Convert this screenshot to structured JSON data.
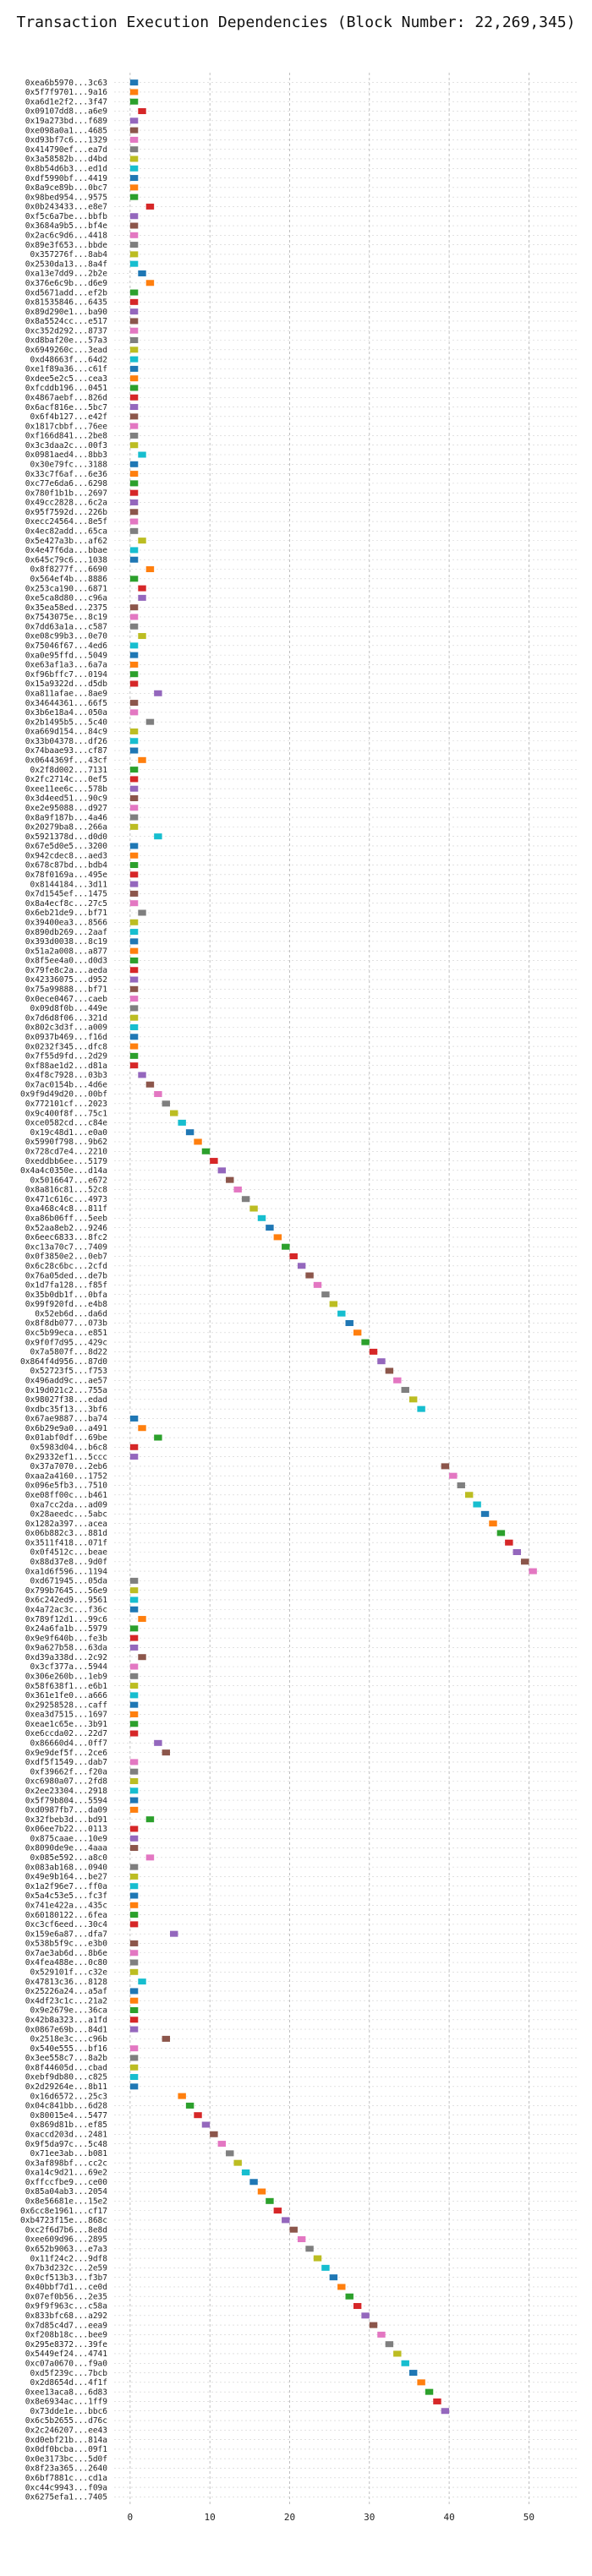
{
  "chart_data": {
    "type": "bar",
    "orientation": "horizontal",
    "title": "Transaction Execution Dependencies (Block Number: 22,269,345)",
    "xlabel": "",
    "ylabel": "",
    "xlim": [
      -2,
      56
    ],
    "xticks": [
      0,
      10,
      20,
      30,
      40,
      50
    ],
    "grid": true,
    "bar_width": 1,
    "categories": [
      "0xea6b5970...3c63",
      "0x5f7f9701...9a16",
      "0xa6d1e2f2...3f47",
      "0x09107dd8...a6e9",
      "0x19a273bd...f689",
      "0xe098a0a1...4685",
      "0xd93bf7c6...1329",
      "0x414790ef...ea7d",
      "0x3a58582b...d4bd",
      "0x8b54d6b3...ed1d",
      "0xdf5990bf...4419",
      "0x8a9ce89b...0bc7",
      "0x98bed954...9575",
      "0x0b243433...e8e7",
      "0xf5c6a7be...bbfb",
      "0x3684a9b5...bf4e",
      "0x2ac6c9d6...4418",
      "0x89e3f653...bbde",
      "0x357276f...8ab4",
      "0x2530da13...8a4f",
      "0xa13e7dd9...2b2e",
      "0x376e6c9b...d6e9",
      "0xd5671add...ef2b",
      "0x81535846...6435",
      "0x89d290e1...ba90",
      "0x8a5524cc...e517",
      "0xc352d292...8737",
      "0xd8baf20e...57a3",
      "0x6949260c...3ead",
      "0xd48663f...64d2",
      "0xe1f89a36...c61f",
      "0xdee5e2c5...cea3",
      "0xfcddb196...0451",
      "0x4867aebf...826d",
      "0x6acf816e...5bc7",
      "0x6f4b127...e42f",
      "0x1817cbbf...76ee",
      "0xf166d841...2be8",
      "0x3c3daa2c...00f3",
      "0x0981aed4...8bb3",
      "0x30e79fc...3188",
      "0x33c7f6af...6e36",
      "0xc77e6da6...6298",
      "0x780f1b1b...2697",
      "0x49cc2828...6c2a",
      "0x95f7592d...226b",
      "0xecc24564...8e5f",
      "0x4ec82add...65ca",
      "0x5e427a3b...af62",
      "0x4e47f6da...bbae",
      "0x645c79c6...1038",
      "0x8f8277f...6690",
      "0x564ef4b...8886",
      "0x253ca190...6871",
      "0xe5ca8d80...c96a",
      "0x35ea58ed...2375",
      "0x7543075e...8c19",
      "0x7dd63a1a...c587",
      "0xe08c99b3...0e70",
      "0x75046f67...4ed6",
      "0xa0e95ffd...5049",
      "0xe63af1a3...6a7a",
      "0xf96bffc7...0194",
      "0x15a9322d...d5db",
      "0xa811afae...8ae9",
      "0x34644361...66f5",
      "0x3b6e18a4...050a",
      "0x2b1495b5...5c40",
      "0xa669d154...84c9",
      "0x33b04378...df26",
      "0x74baae93...cf87",
      "0x0644369f...43cf",
      "0x2f8d002...7131",
      "0x2fc2714c...0ef5",
      "0xee11ee6c...578b",
      "0x3d4eed51...90c9",
      "0xe2e95088...d927",
      "0x8a9f187b...4a46",
      "0x20279ba8...266a",
      "0x5921378d...d0d0",
      "0x67e5d0e5...3200",
      "0x942cdec8...aed3",
      "0x678c87bd...bdb4",
      "0x78f0169a...495e",
      "0x8144184...3d11",
      "0x7d1545ef...1475",
      "0x8a4ecf8c...27c5",
      "0x6eb21de9...bf71",
      "0x39400ea3...8566",
      "0x890db269...2aaf",
      "0x393d0038...8c19",
      "0x51a2a008...a877",
      "0x8f5ee4a0...d0d3",
      "0x79fe8c2a...aeda",
      "0x42336075...d952",
      "0x75a99888...bf71",
      "0x0ece0467...caeb",
      "0x09d8f0b...449e",
      "0x7d6d8f06...321d",
      "0x802c3d3f...a009",
      "0x0937b469...f16d",
      "0x0232f345...dfc8",
      "0x7f55d9fd...2d29",
      "0xf88ae1d2...d81a",
      "0x4f8c7928...03b3",
      "0x7ac0154b...4d6e",
      "0x9f9d49d20...00bf",
      "0x772101cf...2023",
      "0x9c400f8f...75c1",
      "0xce0582cd...c84e",
      "0x19c48d1...e0a0",
      "0x5990f798...9b62",
      "0x728cd7e4...2210",
      "0xeddbb6ee...5179",
      "0x4a4c0350e...d14a",
      "0x5016647...e672",
      "0x8a816c81...52c8",
      "0x471c616c...4973",
      "0xa468c4c8...811f",
      "0xa86b06ff...5eeb",
      "0x52aa8eb2...9246",
      "0x6eec6833...8fc2",
      "0xc13a70c7...7409",
      "0x0f3850e2...0eb7",
      "0x6c28c6bc...2cfd",
      "0x76a05ded...de7b",
      "0x1d7fa128...f85f",
      "0x35b0db1f...0bfa",
      "0x99f920fd...e4b8",
      "0x52eb6d...da6d",
      "0x8f8db077...073b",
      "0xc5b99eca...e851",
      "0x9f0f7d95...429c",
      "0x7a5807f...8d22",
      "0x864f4d956...87d0",
      "0x52723f5...f753",
      "0x496add9c...ae57",
      "0x19d021c2...755a",
      "0x98027f38...edad",
      "0xdbc35f13...3bf6",
      "0x67ae9887...ba74",
      "0x6b29e9a0...a491",
      "0x01abf0df...69be",
      "0x5983d04...b6c8",
      "0x29332ef1...5ccc",
      "0x37a7070...2eb6",
      "0xaa2a4160...1752",
      "0x096e5fb3...7510",
      "0xe08ff00c...b461",
      "0xa7cc2da...ad09",
      "0x28aeedc...5abc",
      "0x1282a397...acea",
      "0x06b882c3...881d",
      "0x3511f418...071f",
      "0x0f4512c...beae",
      "0x88d37e8...9d0f",
      "0xa1d6f596...1194",
      "0xd671945...05da",
      "0x799b7645...56e9",
      "0x6c242ed9...9561",
      "0x4a72ac3c...f36c",
      "0x789f12d1...99c6",
      "0x24a6fa1b...5979",
      "0x9e9f640b...fe3b",
      "0x9a627b58...63da",
      "0xd39a338d...2c92",
      "0x3cf377a...5944",
      "0x306e260b...1eb9",
      "0x58f638f1...e6b1",
      "0x361e1fe0...a666",
      "0x29258528...caff",
      "0xea3d7515...1697",
      "0xeae1c65e...3b91",
      "0xe6ccda02...22d7",
      "0x86660d4...0ff7",
      "0x9e9def5f...2ce6",
      "0xdf5f1549...dab7",
      "0xf39662f...f20a",
      "0xc6980a07...2fd8",
      "0x2ee23304...2918",
      "0x5f79b804...5594",
      "0xd0987fb7...da09",
      "0x32fbeb3d...bd91",
      "0x06ee7b22...0113",
      "0x875caae...10e9",
      "0x8090de9e...4aaa",
      "0x085e592...a8c0",
      "0x083ab168...0940",
      "0x49e9b164...be27",
      "0x1a2f96e7...ff0a",
      "0x5a4c53e5...fc3f",
      "0x741e422a...435c",
      "0x60180122...6fea",
      "0xc3cf6eed...30c4",
      "0x159e6a87...dfa7",
      "0x538b5f9c...e3b0",
      "0x7ae3ab6d...8b6e",
      "0x4fea488e...0c80",
      "0x529101f...c32e",
      "0x47813c36...8128",
      "0x25226a24...a5af",
      "0x4df23c1c...21a2",
      "0x9e2679e...36ca",
      "0x42b8a323...a1fd",
      "0x0867e69b...84d1",
      "0x2518e3c...c96b",
      "0x540e555...bf16",
      "0x3ee558c7...8a2b",
      "0x8f44605d...cbad",
      "0xebf9db80...c825",
      "0x2d29264e...8b11",
      "0x16d6572...25c3",
      "0x04c841bb...6d28",
      "0x80015e4...5477",
      "0x869d81b...ef85",
      "0xaccd203d...2481",
      "0x9f5da97c...5c48",
      "0x71ee3ab...b081",
      "0x3af898bf...cc2c",
      "0xa14c9d21...69e2",
      "0xffccfbe9...ce00",
      "0x85a04ab3...2054",
      "0x8e56681e...15e2",
      "0x6cc8e1961...cf17",
      "0xb4723f15e...868c",
      "0xc2f6d7b6...8e8d",
      "0xee609d96...2895",
      "0x652b9063...e7a3",
      "0x11f24c2...9df8",
      "0x7b3d232c...2e59",
      "0x0cf513b3...f3b7",
      "0x40bbf7d1...ce0d",
      "0x07ef0b56...2e35",
      "0x9f9f963c...c58a",
      "0x833bfc68...a292",
      "0x7d85c4d7...eea9",
      "0xf208b18c...bee9",
      "0x295e8372...39fe",
      "0x5449ef24...4741",
      "0xc07a0670...f9a0",
      "0xd5f239c...7bcb",
      "0x2d8654d...4f1f",
      "0xee13aca8...6d83",
      "0x8e6934ac...1ff9",
      "0x73dde1e...bbc6",
      "0x6c5b2655...d76c",
      "0x2c246207...ee43",
      "0xd0ebf21b...814a",
      "0x0df0bcba...09f1",
      "0x0e3173bc...5d0f",
      "0x8f23a365...2640",
      "0x6bf7881c...cd1a",
      "0xc44c9943...f09a",
      "0x6275efa1...7405"
    ],
    "starts": [
      0,
      0,
      0,
      1,
      0,
      0,
      0,
      0,
      0,
      0,
      0,
      0,
      0,
      2,
      0,
      0,
      0,
      0,
      0,
      0,
      1,
      2,
      0,
      0,
      0,
      0,
      0,
      0,
      0,
      0,
      0,
      0,
      0,
      0,
      0,
      0,
      0,
      0,
      0,
      1,
      0,
      0,
      0,
      0,
      0,
      0,
      0,
      0,
      1,
      0,
      0,
      2,
      0,
      1,
      1,
      0,
      0,
      0,
      1,
      0,
      0,
      0,
      0,
      0,
      3,
      0,
      0,
      2,
      0,
      0,
      0,
      1,
      0,
      0,
      0,
      0,
      0,
      0,
      0,
      3,
      0,
      0,
      0,
      0,
      0,
      0,
      0,
      1,
      0,
      0,
      0,
      0,
      0,
      0,
      0,
      0,
      0,
      0,
      0,
      0,
      0,
      0,
      0,
      0,
      1,
      2,
      3,
      4,
      5,
      6,
      7,
      8,
      9,
      10,
      11,
      12,
      13,
      14,
      15,
      16,
      17,
      18,
      19,
      20,
      21,
      22,
      23,
      24,
      25,
      26,
      27,
      28,
      29,
      30,
      31,
      32,
      33,
      34,
      35,
      36,
      0,
      1,
      3,
      0,
      0,
      39,
      40,
      41,
      42,
      43,
      44,
      45,
      46,
      47,
      48,
      49,
      50,
      0,
      0,
      0,
      0,
      1,
      0,
      0,
      0,
      1,
      0,
      0,
      0,
      0,
      0,
      0,
      0,
      0,
      3,
      4,
      0,
      0,
      0,
      0,
      0,
      0,
      2,
      0,
      0,
      0,
      2,
      0,
      0,
      0,
      0,
      0,
      0,
      0,
      5,
      0,
      0,
      0,
      0,
      1,
      0,
      0,
      0,
      0,
      0,
      4,
      0,
      0,
      0,
      0,
      0,
      6,
      7,
      8,
      9,
      10,
      11,
      12,
      13,
      14,
      15,
      16,
      17,
      18,
      19,
      20,
      21,
      22,
      23,
      24,
      25,
      26,
      27,
      28,
      29,
      30,
      31,
      32,
      33,
      34,
      35,
      36,
      37,
      38,
      39
    ]
  }
}
